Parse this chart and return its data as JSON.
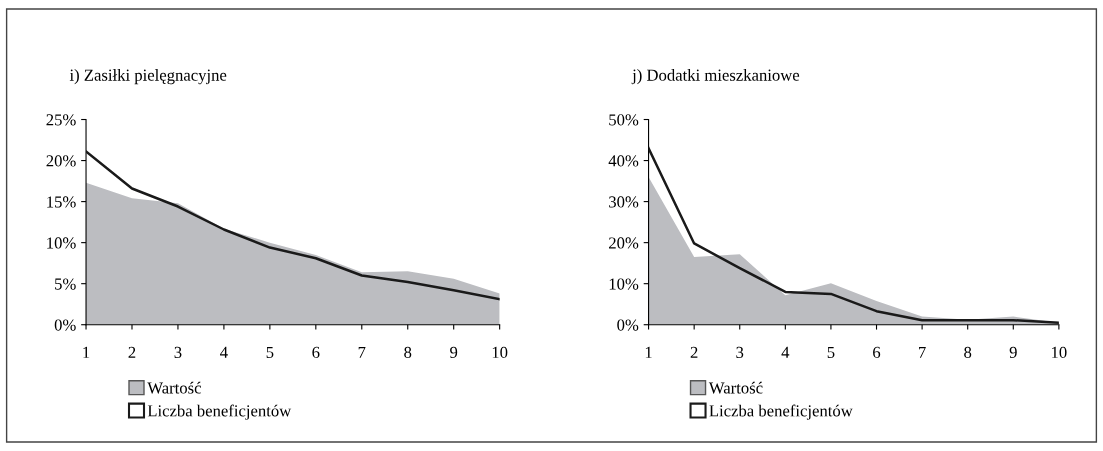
{
  "chart_data": [
    {
      "type": "area",
      "title": "i) Zasiłki pielęgnacyjne",
      "categories": [
        "1",
        "2",
        "3",
        "4",
        "5",
        "6",
        "7",
        "8",
        "9",
        "10"
      ],
      "ylim": [
        0,
        25
      ],
      "yticks": [
        {
          "value": 0,
          "label": "0%"
        },
        {
          "value": 5,
          "label": "5%"
        },
        {
          "value": 10,
          "label": "10%"
        },
        {
          "value": 15,
          "label": "15%"
        },
        {
          "value": 20,
          "label": "20%"
        },
        {
          "value": 25,
          "label": "25%"
        }
      ],
      "legend": "bottom",
      "grid": false,
      "series": [
        {
          "name": "Wartość",
          "color": "#bcbdc1",
          "values": [
            17.3,
            15.4,
            14.8,
            11.7,
            10.0,
            8.5,
            6.4,
            6.5,
            5.6,
            3.8
          ]
        },
        {
          "name": "Liczba beneficjentów",
          "type": "line",
          "color": "#1a1a1a",
          "values": [
            21.1,
            16.6,
            14.4,
            11.6,
            9.4,
            8.1,
            6.0,
            5.2,
            4.2,
            3.1
          ]
        }
      ]
    },
    {
      "type": "area",
      "title": "j) Dodatki mieszkaniowe",
      "categories": [
        "1",
        "2",
        "3",
        "4",
        "5",
        "6",
        "7",
        "8",
        "9",
        "10"
      ],
      "ylim": [
        0,
        50
      ],
      "yticks": [
        {
          "value": 0,
          "label": "0%"
        },
        {
          "value": 10,
          "label": "10%"
        },
        {
          "value": 20,
          "label": "20%"
        },
        {
          "value": 30,
          "label": "30%"
        },
        {
          "value": 40,
          "label": "40%"
        },
        {
          "value": 50,
          "label": "50%"
        }
      ],
      "legend": "bottom",
      "grid": false,
      "series": [
        {
          "name": "Wartość",
          "color": "#bcbdc1",
          "values": [
            36.0,
            16.5,
            17.2,
            7.2,
            10.1,
            5.8,
            2.0,
            1.2,
            2.0,
            0.5
          ]
        },
        {
          "name": "Liczba beneficjentów",
          "type": "line",
          "color": "#1a1a1a",
          "values": [
            43.0,
            19.8,
            13.8,
            8.0,
            7.5,
            3.3,
            1.1,
            1.1,
            1.1,
            0.5
          ]
        }
      ]
    }
  ]
}
